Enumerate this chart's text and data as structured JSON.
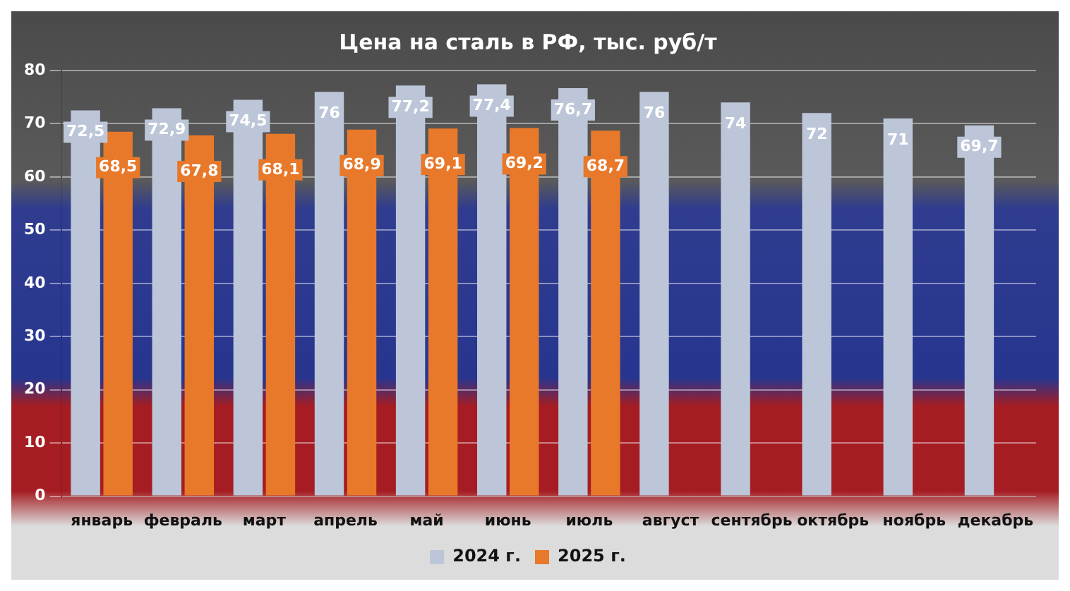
{
  "chart_data": {
    "type": "bar",
    "title": "Цена на сталь в РФ, тыс. руб/т",
    "categories": [
      "январь",
      "февраль",
      "март",
      "апрель",
      "май",
      "июнь",
      "июль",
      "август",
      "сентябрь",
      "октябрь",
      "ноябрь",
      "декабрь"
    ],
    "series": [
      {
        "name": "2024 г.",
        "color": "#bcc6d8",
        "values": [
          72.5,
          72.9,
          74.5,
          76,
          77.2,
          77.4,
          76.7,
          76,
          74,
          72,
          71,
          69.7
        ],
        "value_labels": [
          "72,5",
          "72,9",
          "74,5",
          "76",
          "77,2",
          "77,4",
          "76,7",
          "76",
          "74",
          "72",
          "71",
          "69,7"
        ]
      },
      {
        "name": "2025 г.",
        "color": "#e8782a",
        "values": [
          68.5,
          67.8,
          68.1,
          68.9,
          69.1,
          69.2,
          68.7,
          null,
          null,
          null,
          null,
          null
        ],
        "value_labels": [
          "68,5",
          "67,8",
          "68,1",
          "68,9",
          "69,1",
          "69,2",
          "68,7",
          null,
          null,
          null,
          null,
          null
        ]
      }
    ],
    "ylim": [
      0,
      80
    ],
    "yticks": [
      0,
      10,
      20,
      30,
      40,
      50,
      60,
      70,
      80
    ],
    "grid": "y",
    "legend": "bottom"
  }
}
